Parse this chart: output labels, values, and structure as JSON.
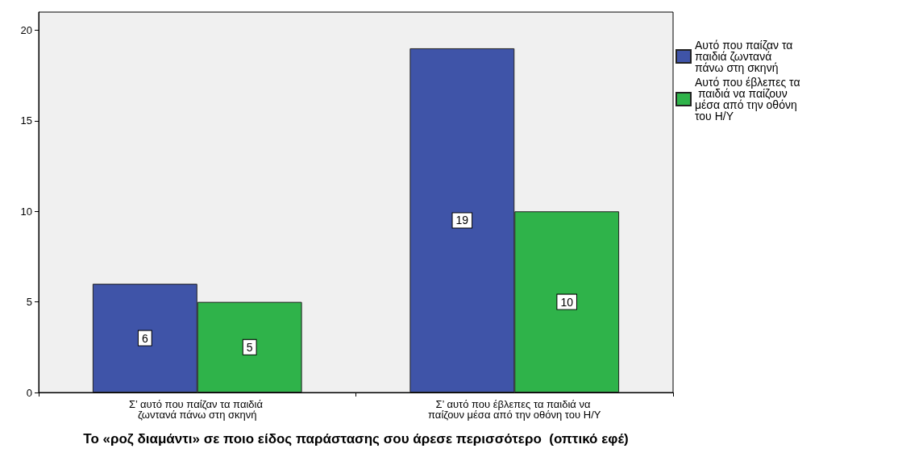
{
  "chart_data": {
    "type": "bar",
    "xlabel": "Το «ροζ διαμάντι» σε ποιο είδος παράστασης σου άρεσε περισσότερο  (οπτικό εφέ)",
    "categories": [
      "Σ’ αυτό που παίζαν τα παιδιά ζωντανά πάνω στη σκηνή",
      "Σ’ αυτό που έβλεπες τα παιδιά να παίζουν μέσα από την οθόνη του Η/Υ"
    ],
    "series": [
      {
        "name": "Αυτό που παίζαν τα παιδιά ζωντανά πάνω στη σκηνή",
        "color": "#3f54a8",
        "values": [
          6,
          19
        ]
      },
      {
        "name": "Αυτό που έβλεπες τα παιδιά να παίζουν μέσα από την οθόνη του Η/Υ",
        "color": "#2fb34a",
        "values": [
          5,
          10
        ]
      }
    ],
    "ylim": [
      0,
      21
    ],
    "yticks": [
      0,
      5,
      10,
      15,
      20
    ],
    "grid": false,
    "legend": "top right",
    "data_labels": true
  }
}
